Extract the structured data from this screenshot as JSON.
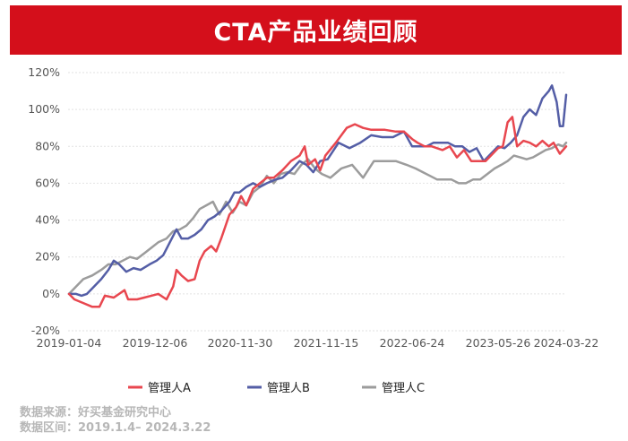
{
  "header": {
    "title": "CTA产品业绩回顾"
  },
  "footer": {
    "source": "数据来源：好买基金研究中心",
    "period": "数据区间：2019.1.4– 2024.3.22"
  },
  "chart_data": {
    "type": "line",
    "title": "CTA产品业绩回顾",
    "xlabel": "",
    "ylabel": "",
    "ylim": [
      -20,
      120
    ],
    "yticks": [
      -20,
      0,
      20,
      40,
      60,
      80,
      100,
      120
    ],
    "ytick_labels": [
      "-20%",
      "0%",
      "20%",
      "40%",
      "60%",
      "80%",
      "100%",
      "120%"
    ],
    "xtick_dates": [
      "2019-01-04",
      "2019-12-06",
      "2020-11-30",
      "2021-11-15",
      "2022-06-24",
      "2023-05-26",
      "2024-03-22"
    ],
    "grid": "horizontal",
    "legend_position": "bottom",
    "series": [
      {
        "name": "管理人A",
        "color": "#e8474f",
        "points": [
          [
            "2019-01-04",
            0
          ],
          [
            "2019-01-25",
            -3
          ],
          [
            "2019-03-01",
            -5
          ],
          [
            "2019-04-05",
            -7
          ],
          [
            "2019-05-03",
            -7
          ],
          [
            "2019-05-24",
            -1
          ],
          [
            "2019-06-28",
            -2
          ],
          [
            "2019-07-19",
            0
          ],
          [
            "2019-08-09",
            2
          ],
          [
            "2019-08-23",
            -3
          ],
          [
            "2019-09-27",
            -3
          ],
          [
            "2019-10-25",
            -2
          ],
          [
            "2019-11-22",
            -1
          ],
          [
            "2019-12-20",
            0
          ],
          [
            "2020-01-24",
            -3
          ],
          [
            "2020-02-21",
            4
          ],
          [
            "2020-03-06",
            13
          ],
          [
            "2020-03-27",
            10
          ],
          [
            "2020-04-24",
            7
          ],
          [
            "2020-05-22",
            8
          ],
          [
            "2020-06-12",
            18
          ],
          [
            "2020-07-03",
            23
          ],
          [
            "2020-07-31",
            26
          ],
          [
            "2020-08-21",
            23
          ],
          [
            "2020-09-11",
            30
          ],
          [
            "2020-10-16",
            43
          ],
          [
            "2020-11-13",
            47
          ],
          [
            "2020-12-04",
            53
          ],
          [
            "2020-12-25",
            48
          ],
          [
            "2021-01-22",
            57
          ],
          [
            "2021-02-19",
            60
          ],
          [
            "2021-03-19",
            63
          ],
          [
            "2021-04-16",
            63
          ],
          [
            "2021-05-21",
            67
          ],
          [
            "2021-06-25",
            72
          ],
          [
            "2021-07-30",
            75
          ],
          [
            "2021-08-20",
            80
          ],
          [
            "2021-09-03",
            70
          ],
          [
            "2021-10-01",
            73
          ],
          [
            "2021-10-22",
            67
          ],
          [
            "2021-11-12",
            75
          ],
          [
            "2021-12-10",
            82
          ],
          [
            "2022-01-07",
            90
          ],
          [
            "2022-01-28",
            92
          ],
          [
            "2022-02-18",
            90
          ],
          [
            "2022-03-11",
            89
          ],
          [
            "2022-04-15",
            89
          ],
          [
            "2022-05-13",
            88
          ],
          [
            "2022-06-03",
            88
          ],
          [
            "2022-06-24",
            84
          ],
          [
            "2022-07-15",
            82
          ],
          [
            "2022-08-12",
            80
          ],
          [
            "2022-09-09",
            80
          ],
          [
            "2022-10-21",
            78
          ],
          [
            "2022-11-18",
            80
          ],
          [
            "2022-12-16",
            74
          ],
          [
            "2023-01-13",
            78
          ],
          [
            "2023-02-10",
            72
          ],
          [
            "2023-03-10",
            72
          ],
          [
            "2023-04-07",
            72
          ],
          [
            "2023-05-26",
            79
          ],
          [
            "2023-06-16",
            80
          ],
          [
            "2023-07-07",
            93
          ],
          [
            "2023-07-28",
            96
          ],
          [
            "2023-08-18",
            80
          ],
          [
            "2023-09-15",
            83
          ],
          [
            "2023-10-13",
            82
          ],
          [
            "2023-11-10",
            80
          ],
          [
            "2023-12-08",
            83
          ],
          [
            "2024-01-05",
            80
          ],
          [
            "2024-01-26",
            82
          ],
          [
            "2024-02-23",
            76
          ],
          [
            "2024-03-22",
            80
          ]
        ]
      },
      {
        "name": "管理人B",
        "color": "#545ea6",
        "points": [
          [
            "2019-01-04",
            0
          ],
          [
            "2019-02-01",
            0
          ],
          [
            "2019-02-22",
            -1
          ],
          [
            "2019-03-15",
            0
          ],
          [
            "2019-04-05",
            3
          ],
          [
            "2019-05-10",
            8
          ],
          [
            "2019-06-07",
            13
          ],
          [
            "2019-06-28",
            18
          ],
          [
            "2019-07-19",
            16
          ],
          [
            "2019-08-16",
            12
          ],
          [
            "2019-09-13",
            14
          ],
          [
            "2019-10-11",
            13
          ],
          [
            "2019-11-15",
            16
          ],
          [
            "2019-12-13",
            18
          ],
          [
            "2020-01-10",
            21
          ],
          [
            "2020-02-07",
            28
          ],
          [
            "2020-03-06",
            35
          ],
          [
            "2020-03-27",
            30
          ],
          [
            "2020-04-24",
            30
          ],
          [
            "2020-05-22",
            32
          ],
          [
            "2020-06-19",
            35
          ],
          [
            "2020-07-17",
            40
          ],
          [
            "2020-08-14",
            42
          ],
          [
            "2020-09-11",
            45
          ],
          [
            "2020-10-16",
            50
          ],
          [
            "2020-11-06",
            55
          ],
          [
            "2020-11-27",
            55
          ],
          [
            "2020-12-25",
            58
          ],
          [
            "2021-01-22",
            60
          ],
          [
            "2021-02-19",
            58
          ],
          [
            "2021-03-19",
            60
          ],
          [
            "2021-04-23",
            62
          ],
          [
            "2021-05-21",
            63
          ],
          [
            "2021-06-25",
            67
          ],
          [
            "2021-07-30",
            72
          ],
          [
            "2021-08-27",
            70
          ],
          [
            "2021-09-24",
            66
          ],
          [
            "2021-10-22",
            72
          ],
          [
            "2021-11-19",
            73
          ],
          [
            "2021-12-17",
            82
          ],
          [
            "2022-01-14",
            79
          ],
          [
            "2022-02-11",
            82
          ],
          [
            "2022-03-11",
            86
          ],
          [
            "2022-04-08",
            85
          ],
          [
            "2022-05-06",
            85
          ],
          [
            "2022-06-03",
            88
          ],
          [
            "2022-06-24",
            80
          ],
          [
            "2022-07-22",
            80
          ],
          [
            "2022-08-19",
            80
          ],
          [
            "2022-09-16",
            82
          ],
          [
            "2022-10-14",
            82
          ],
          [
            "2022-11-11",
            82
          ],
          [
            "2022-12-09",
            80
          ],
          [
            "2023-01-06",
            80
          ],
          [
            "2023-02-03",
            77
          ],
          [
            "2023-03-03",
            79
          ],
          [
            "2023-03-31",
            72
          ],
          [
            "2023-04-28",
            76
          ],
          [
            "2023-05-26",
            80
          ],
          [
            "2023-06-23",
            79
          ],
          [
            "2023-07-21",
            82
          ],
          [
            "2023-08-18",
            86
          ],
          [
            "2023-09-15",
            96
          ],
          [
            "2023-10-13",
            100
          ],
          [
            "2023-11-10",
            97
          ],
          [
            "2023-12-08",
            106
          ],
          [
            "2024-01-05",
            110
          ],
          [
            "2024-01-19",
            113
          ],
          [
            "2024-02-09",
            104
          ],
          [
            "2024-02-23",
            91
          ],
          [
            "2024-03-08",
            91
          ],
          [
            "2024-03-22",
            108
          ]
        ]
      },
      {
        "name": "管理人C",
        "color": "#9c9c9c",
        "points": [
          [
            "2019-01-04",
            0
          ],
          [
            "2019-02-01",
            4
          ],
          [
            "2019-03-01",
            8
          ],
          [
            "2019-04-05",
            10
          ],
          [
            "2019-05-10",
            13
          ],
          [
            "2019-06-07",
            16
          ],
          [
            "2019-07-05",
            16
          ],
          [
            "2019-08-02",
            18
          ],
          [
            "2019-08-30",
            20
          ],
          [
            "2019-09-27",
            19
          ],
          [
            "2019-10-25",
            22
          ],
          [
            "2019-11-22",
            25
          ],
          [
            "2019-12-20",
            28
          ],
          [
            "2020-01-24",
            30
          ],
          [
            "2020-02-21",
            34
          ],
          [
            "2020-03-20",
            35
          ],
          [
            "2020-04-17",
            37
          ],
          [
            "2020-05-15",
            41
          ],
          [
            "2020-06-12",
            46
          ],
          [
            "2020-07-10",
            48
          ],
          [
            "2020-08-07",
            50
          ],
          [
            "2020-09-04",
            43
          ],
          [
            "2020-10-02",
            50
          ],
          [
            "2020-10-30",
            44
          ],
          [
            "2020-11-27",
            50
          ],
          [
            "2020-12-25",
            48
          ],
          [
            "2021-01-22",
            55
          ],
          [
            "2021-02-19",
            58
          ],
          [
            "2021-03-19",
            64
          ],
          [
            "2021-04-16",
            60
          ],
          [
            "2021-05-14",
            65
          ],
          [
            "2021-06-11",
            66
          ],
          [
            "2021-07-09",
            65
          ],
          [
            "2021-08-06",
            70
          ],
          [
            "2021-09-03",
            73
          ],
          [
            "2021-10-01",
            68
          ],
          [
            "2021-10-29",
            65
          ],
          [
            "2021-11-26",
            63
          ],
          [
            "2021-12-24",
            68
          ],
          [
            "2022-01-21",
            70
          ],
          [
            "2022-02-18",
            63
          ],
          [
            "2022-03-18",
            72
          ],
          [
            "2022-04-15",
            72
          ],
          [
            "2022-05-13",
            72
          ],
          [
            "2022-06-10",
            70
          ],
          [
            "2022-07-08",
            68
          ],
          [
            "2022-08-05",
            66
          ],
          [
            "2022-09-02",
            64
          ],
          [
            "2022-09-30",
            62
          ],
          [
            "2022-10-28",
            62
          ],
          [
            "2022-11-25",
            62
          ],
          [
            "2022-12-23",
            60
          ],
          [
            "2023-01-20",
            60
          ],
          [
            "2023-02-17",
            62
          ],
          [
            "2023-03-17",
            62
          ],
          [
            "2023-04-14",
            65
          ],
          [
            "2023-05-12",
            68
          ],
          [
            "2023-06-09",
            70
          ],
          [
            "2023-07-07",
            72
          ],
          [
            "2023-08-04",
            75
          ],
          [
            "2023-09-01",
            74
          ],
          [
            "2023-09-29",
            73
          ],
          [
            "2023-10-27",
            74
          ],
          [
            "2023-11-24",
            76
          ],
          [
            "2023-12-22",
            78
          ],
          [
            "2024-01-19",
            79
          ],
          [
            "2024-02-16",
            81
          ],
          [
            "2024-03-08",
            80
          ],
          [
            "2024-03-22",
            82
          ]
        ]
      }
    ]
  }
}
